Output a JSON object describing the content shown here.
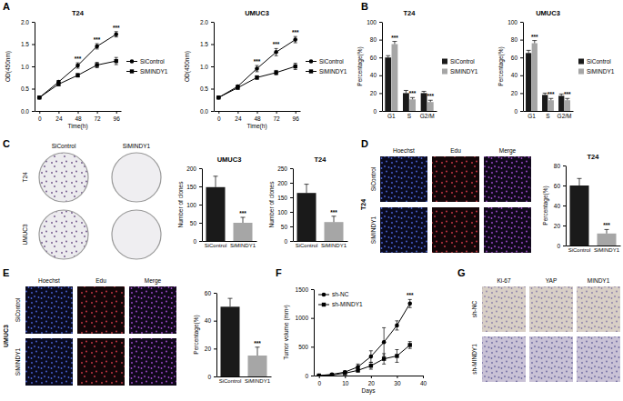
{
  "chart_data": [
    {
      "type": "line",
      "title": "T24",
      "x": [
        0,
        24,
        48,
        72,
        96
      ],
      "xlim": [
        -6,
        102
      ],
      "xticks": [
        0,
        24,
        48,
        72,
        96
      ],
      "ylim": [
        0,
        2
      ],
      "yticks": [
        {
          "value": 0,
          "label": "0.0"
        },
        {
          "value": 0.5,
          "label": "0.5"
        },
        {
          "value": 1,
          "label": "1.0"
        },
        {
          "value": 1.5,
          "label": "1.5"
        },
        {
          "value": 2,
          "label": "2.0"
        }
      ],
      "x_label": "Time(h)",
      "y_label": "OD(450nm)",
      "legend": "right",
      "series": [
        {
          "name": "SiControl",
          "color": "#000000",
          "marker": "circle",
          "values": [
            0.3,
            0.65,
            1.02,
            1.45,
            1.72
          ],
          "errors": [
            0.02,
            0.03,
            0.06,
            0.06,
            0.06
          ]
        },
        {
          "name": "SiMINDY1",
          "color": "#000000",
          "marker": "square",
          "values": [
            0.3,
            0.6,
            0.8,
            1.03,
            1.12
          ],
          "errors": [
            0.02,
            0.03,
            0.04,
            0.06,
            0.08
          ]
        }
      ],
      "annotations": [
        {
          "x": 48,
          "text": "***"
        },
        {
          "x": 72,
          "text": "***"
        },
        {
          "x": 96,
          "text": "***"
        }
      ]
    },
    {
      "type": "line",
      "title": "UMUC3",
      "x": [
        0,
        24,
        48,
        72,
        96
      ],
      "xlim": [
        -6,
        102
      ],
      "xticks": [
        0,
        24,
        48,
        72,
        96
      ],
      "ylim": [
        0,
        2
      ],
      "yticks": [
        {
          "value": 0,
          "label": "0.0"
        },
        {
          "value": 0.5,
          "label": "0.5"
        },
        {
          "value": 1,
          "label": "1.0"
        },
        {
          "value": 1.5,
          "label": "1.5"
        },
        {
          "value": 2,
          "label": "2.0"
        }
      ],
      "x_label": "Time(h)",
      "y_label": "OD(450nm)",
      "legend": "right",
      "series": [
        {
          "name": "SiControl",
          "color": "#000000",
          "marker": "circle",
          "values": [
            0.3,
            0.55,
            0.95,
            1.32,
            1.6
          ],
          "errors": [
            0.02,
            0.03,
            0.07,
            0.08,
            0.07
          ]
        },
        {
          "name": "SiMINDY1",
          "color": "#000000",
          "marker": "square",
          "values": [
            0.3,
            0.52,
            0.75,
            0.86,
            1.0
          ],
          "errors": [
            0.02,
            0.03,
            0.04,
            0.05,
            0.07
          ]
        }
      ],
      "annotations": [
        {
          "x": 48,
          "text": "***"
        },
        {
          "x": 72,
          "text": "***"
        },
        {
          "x": 96,
          "text": "***"
        }
      ]
    },
    {
      "type": "bar",
      "title": "T24",
      "categories": [
        "G1",
        "S",
        "G2/M"
      ],
      "y_label": "Percentage(%)",
      "ylim": [
        0,
        100
      ],
      "yticks": [
        0,
        20,
        40,
        60,
        80,
        100
      ],
      "legend": "right",
      "series": [
        {
          "name": "SiControl",
          "color": "#1a1a1a",
          "values": [
            60,
            20,
            20
          ],
          "errors": [
            2,
            3,
            2
          ]
        },
        {
          "name": "SiMINDY1",
          "color": "#a6a6a6",
          "values": [
            75,
            13,
            10
          ],
          "errors": [
            3,
            2,
            2
          ]
        }
      ],
      "annotations": [
        {
          "category": 0,
          "series": 1,
          "text": "***"
        },
        {
          "category": 1,
          "series": 1,
          "text": "***"
        },
        {
          "category": 2,
          "series": 1,
          "text": "***"
        }
      ]
    },
    {
      "type": "bar",
      "title": "UMUC3",
      "categories": [
        "G1",
        "S",
        "G2/M"
      ],
      "y_label": "Percentage(%)",
      "ylim": [
        0,
        100
      ],
      "yticks": [
        0,
        20,
        40,
        60,
        80,
        100
      ],
      "legend": "right",
      "series": [
        {
          "name": "SiControl",
          "color": "#1a1a1a",
          "values": [
            65,
            18,
            17
          ],
          "errors": [
            3,
            2,
            2
          ]
        },
        {
          "name": "SiMINDY1",
          "color": "#a6a6a6",
          "values": [
            76,
            12,
            12
          ],
          "errors": [
            3,
            2,
            2
          ]
        }
      ],
      "annotations": [
        {
          "category": 0,
          "series": 1,
          "text": "***"
        },
        {
          "category": 1,
          "series": 1,
          "text": "***"
        },
        {
          "category": 2,
          "series": 1,
          "text": "***"
        }
      ]
    },
    {
      "type": "bar",
      "title": "UMUC3",
      "categories": [
        "SiControl",
        "SiMINDY1"
      ],
      "values": [
        148,
        50
      ],
      "errors": [
        30,
        15
      ],
      "colors": [
        "#1a1a1a",
        "#a6a6a6"
      ],
      "y_label": "Number of clones",
      "ylim": [
        0,
        200
      ],
      "yticks": [
        0,
        50,
        100,
        150,
        200
      ],
      "annotations": [
        {
          "category": 1,
          "text": "***"
        }
      ]
    },
    {
      "type": "bar",
      "title": "T24",
      "categories": [
        "SiControl",
        "SiMINDY1"
      ],
      "values": [
        165,
        65
      ],
      "errors": [
        30,
        20
      ],
      "colors": [
        "#1a1a1a",
        "#a6a6a6"
      ],
      "y_label": "Number of clones",
      "ylim": [
        0,
        250
      ],
      "yticks": [
        0,
        50,
        100,
        150,
        200,
        250
      ],
      "annotations": [
        {
          "category": 1,
          "text": "***"
        }
      ]
    },
    {
      "type": "bar",
      "title": "T24",
      "categories": [
        "SiControl",
        "SiMINDY1"
      ],
      "values": [
        60,
        12
      ],
      "errors": [
        7,
        4
      ],
      "colors": [
        "#1a1a1a",
        "#a6a6a6"
      ],
      "y_label": "Percentage(%)",
      "ylim": [
        0,
        80
      ],
      "yticks": [
        0,
        20,
        40,
        60,
        80
      ],
      "annotations": [
        {
          "category": 1,
          "text": "***"
        }
      ]
    },
    {
      "type": "bar",
      "categories": [
        "SiControl",
        "SiMINDY1"
      ],
      "values": [
        50,
        15
      ],
      "errors": [
        6,
        6
      ],
      "colors": [
        "#1a1a1a",
        "#a6a6a6"
      ],
      "y_label": "Percentage(%)",
      "ylim": [
        0,
        60
      ],
      "yticks": [
        0,
        20,
        40,
        60
      ],
      "annotations": [
        {
          "category": 1,
          "text": "***"
        }
      ]
    },
    {
      "type": "line",
      "x": [
        0,
        5,
        10,
        15,
        20,
        25,
        30,
        35
      ],
      "xlim": [
        -2,
        40
      ],
      "xticks": [
        0,
        10,
        20,
        30,
        40
      ],
      "ylim": [
        0,
        1500
      ],
      "yticks": [
        0,
        500,
        1000,
        1500
      ],
      "x_label": "Days",
      "y_label": "Tumor volume (mm³)",
      "legend": "upper left",
      "series": [
        {
          "name": "sh-NC",
          "color": "#000000",
          "marker": "circle",
          "values": [
            0,
            20,
            60,
            150,
            330,
            580,
            870,
            1250
          ],
          "errors": [
            0,
            10,
            20,
            50,
            100,
            250,
            80,
            70
          ]
        },
        {
          "name": "sh-MINDY1",
          "color": "#000000",
          "marker": "square",
          "values": [
            0,
            10,
            40,
            90,
            170,
            290,
            340,
            530
          ],
          "errors": [
            0,
            5,
            15,
            30,
            60,
            90,
            110,
            60
          ]
        }
      ],
      "annotations": [
        {
          "x": 35,
          "text": "***"
        }
      ]
    }
  ],
  "panel_labels": [
    "A",
    "B",
    "C",
    "D",
    "E",
    "F",
    "G"
  ],
  "image_panels": [
    {
      "columns": [
        "SiControl",
        "SiMINDY1"
      ],
      "rows": [
        "T24",
        "UMUC3"
      ]
    },
    {
      "title": "T24",
      "columns": [
        "Hoechst",
        "Edu",
        "Merge"
      ],
      "rows": [
        "SiControl",
        "SiMINDY1"
      ]
    },
    {
      "title": "UMUC3",
      "columns": [
        "Hoechst",
        "Edu",
        "Merge"
      ],
      "rows": [
        "SiControl",
        "SiMINDY1"
      ]
    },
    {
      "columns": [
        "Ki-67",
        "YAP",
        "MINDY1"
      ],
      "rows": [
        "sh-NC",
        "sh-MINDY1"
      ]
    }
  ]
}
